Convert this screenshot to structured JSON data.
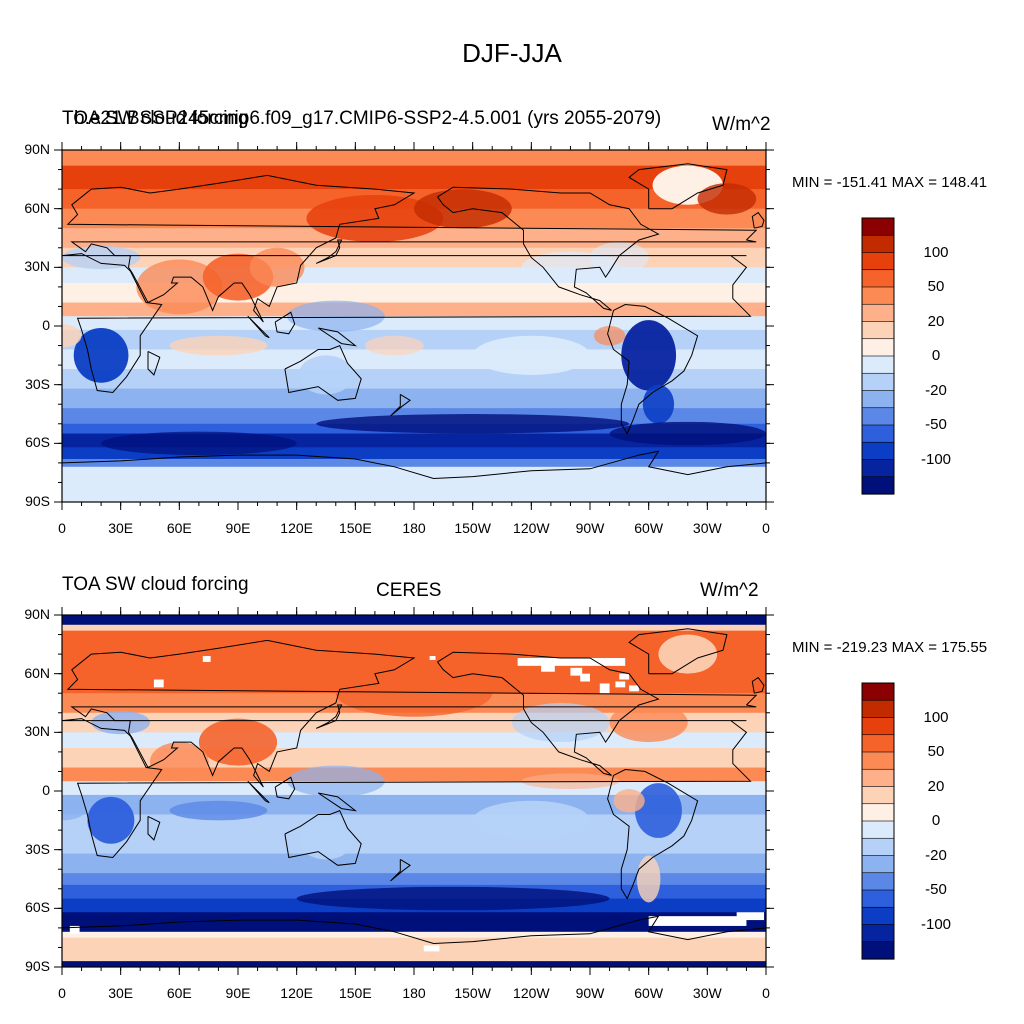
{
  "figure": {
    "title": "DJF-JJA"
  },
  "panels": [
    {
      "left_title": "TOA SW cloud forcing",
      "center_title": "b.e21.BSSP245cmip6.f09_g17.CMIP6-SSP2-4.5.001 (yrs 2055-2079)",
      "units": "W/m^2",
      "minmax": "MIN = -151.41 MAX = 148.41"
    },
    {
      "left_title": "TOA SW cloud forcing",
      "center_title": "CERES",
      "units": "W/m^2",
      "minmax": "MIN = -219.23 MAX = 175.55"
    }
  ],
  "axes": {
    "lat_labels": [
      "90N",
      "60N",
      "30N",
      "0",
      "30S",
      "60S",
      "90S"
    ],
    "lon_labels": [
      "0",
      "30E",
      "60E",
      "90E",
      "120E",
      "150E",
      "180",
      "150W",
      "120W",
      "90W",
      "60W",
      "30W",
      "0"
    ]
  },
  "colorbar": {
    "levels": [
      "100",
      "50",
      "20",
      "0",
      "-20",
      "-50",
      "-100"
    ],
    "colors": [
      "#8b0000",
      "#c22a00",
      "#e6400c",
      "#f5632b",
      "#fb8a55",
      "#fdb08a",
      "#fdd3b8",
      "#fef0e4",
      "#dcebfb",
      "#b5d1f7",
      "#8cb2f0",
      "#5b88e6",
      "#2e5fdc",
      "#0b3ec4",
      "#0623a0",
      "#00107a"
    ]
  },
  "chart_data": {
    "type": "heatmap",
    "title": "DJF-JJA",
    "variable": "TOA SW cloud forcing",
    "units": "W/m^2",
    "x_axis": "longitude",
    "y_axis": "latitude",
    "xlim": [
      0,
      360
    ],
    "ylim": [
      -90,
      90
    ],
    "contour_levels": [
      -100,
      -50,
      -20,
      0,
      20,
      50,
      100
    ],
    "series": [
      {
        "name": "b.e21.BSSP245cmip6.f09_g17.CMIP6-SSP2-4.5.001 (yrs 2055-2079)",
        "min": -151.41,
        "max": 148.41
      },
      {
        "name": "CERES",
        "min": -219.23,
        "max": 175.55
      }
    ]
  }
}
